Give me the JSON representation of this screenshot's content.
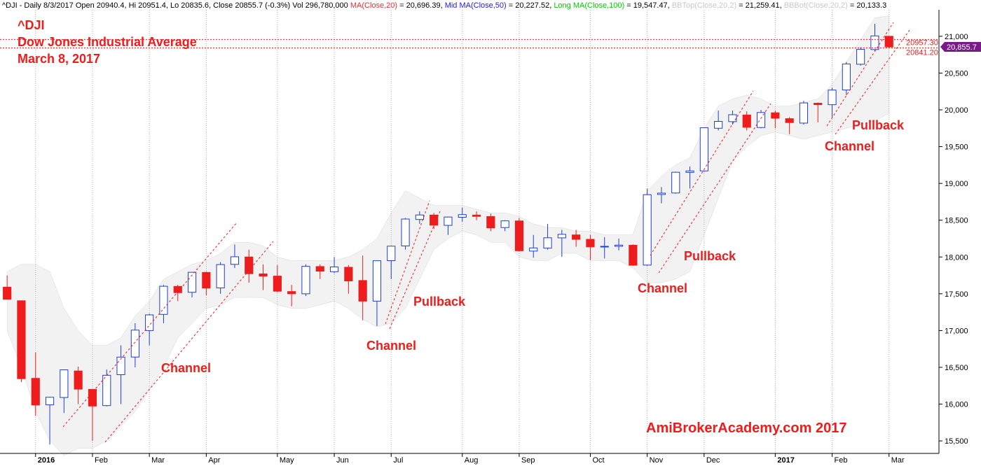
{
  "chart_data": {
    "type": "candlestick",
    "header": [
      {
        "text": "^DJI - Daily 8/3/2017 Open 20940.4, Hi 20951.4, Lo 20835.6, Close 20855.7 (-0.3%) Vol 296,780,000 ",
        "color": "#000000"
      },
      {
        "text": "MA(Close,20)",
        "color": "#e03030"
      },
      {
        "text": " = 20,696.39, ",
        "color": "#000000"
      },
      {
        "text": "Mid MA(Close,50)",
        "color": "#2020e0"
      },
      {
        "text": " = 20,227.52, ",
        "color": "#000000"
      },
      {
        "text": "Long MA(Close,100)",
        "color": "#00cc00"
      },
      {
        "text": " = 19,547.47, ",
        "color": "#000000"
      },
      {
        "text": "BBTop(Close,20,2)",
        "color": "#c8c8c8"
      },
      {
        "text": " = 21,259.41, ",
        "color": "#000000"
      },
      {
        "text": "BBBot(Close,20,2)",
        "color": "#c8c8c8"
      },
      {
        "text": " = 20,133.3",
        "color": "#000000"
      }
    ],
    "title_lines": [
      "^DJI",
      "Dow Jones Industrial Average",
      "March 8, 2017"
    ],
    "annotations": [
      "Channel",
      "Channel",
      "Pullback",
      "Channel",
      "Pullback",
      "Channel",
      "Pullback"
    ],
    "watermark": "AmiBrokerAcademy.com  2017",
    "categories": [
      null,
      null,
      "2016",
      null,
      null,
      null,
      "Feb",
      null,
      null,
      null,
      "Mar",
      null,
      null,
      null,
      "Apr",
      null,
      null,
      null,
      null,
      "May",
      null,
      null,
      null,
      "Jun",
      null,
      null,
      null,
      "Jul",
      null,
      null,
      null,
      null,
      "Aug",
      null,
      null,
      null,
      "Sep",
      null,
      null,
      null,
      null,
      "Oct",
      null,
      null,
      null,
      "Nov",
      null,
      null,
      null,
      "Dec",
      null,
      null,
      null,
      null,
      "2017",
      null,
      null,
      null,
      "Feb",
      null,
      null,
      null,
      "Mar"
    ],
    "open": [
      17590,
      17405,
      16350,
      15990,
      16090,
      16450,
      16200,
      15980,
      16400,
      16640,
      17000,
      17220,
      17600,
      17520,
      17790,
      17580,
      17900,
      18000,
      17770,
      17740,
      17530,
      17500,
      17870,
      17800,
      17860,
      17680,
      17400,
      17950,
      18150,
      18510,
      18570,
      18430,
      18540,
      18570,
      18550,
      18400,
      18490,
      18080,
      18120,
      18260,
      18300,
      18240,
      18140,
      18145,
      18160,
      17890,
      18850,
      18870,
      19150,
      19170,
      19750,
      19840,
      19930,
      19760,
      19960,
      19880,
      19820,
      20090,
      20070,
      20270,
      20620,
      20820,
      21000
    ],
    "high": [
      17750,
      17405,
      16700,
      16100,
      16470,
      16510,
      16200,
      16470,
      16800,
      17100,
      17230,
      17620,
      17620,
      17790,
      17800,
      17930,
      18170,
      18100,
      17900,
      17890,
      17620,
      17900,
      17900,
      18000,
      17890,
      18020,
      17950,
      18150,
      18530,
      18620,
      18600,
      18550,
      18670,
      18620,
      18590,
      18500,
      18530,
      18300,
      18450,
      18370,
      18370,
      18300,
      18270,
      18250,
      18170,
      18930,
      18950,
      19160,
      19230,
      19760,
      19990,
      19990,
      19980,
      19999,
      19990,
      19900,
      20125,
      20100,
      20300,
      20650,
      20850,
      21170,
      21000
    ],
    "low": [
      17420,
      16300,
      15840,
      15450,
      15880,
      16000,
      15500,
      15970,
      16000,
      16500,
      16800,
      17100,
      17400,
      17450,
      17480,
      17500,
      17850,
      17650,
      17550,
      17520,
      17330,
      17470,
      17700,
      17780,
      17500,
      17140,
      17060,
      17700,
      18100,
      18450,
      18380,
      18300,
      18480,
      18500,
      18350,
      18350,
      18080,
      17990,
      18100,
      18000,
      18140,
      17960,
      17980,
      18090,
      17880,
      17880,
      18730,
      18860,
      18930,
      19160,
      19720,
      19800,
      19720,
      19750,
      19750,
      19670,
      19800,
      19830,
      19900,
      20200,
      20600,
      20800,
      20835
    ],
    "close": [
      17425,
      16346,
      15988,
      16093,
      16466,
      16204,
      15974,
      16392,
      16639,
      17006,
      17213,
      17602,
      17515,
      17792,
      17577,
      17897,
      18003,
      17773,
      17740,
      17535,
      17500,
      17873,
      17807,
      17865,
      17675,
      17400,
      17949,
      18147,
      18516,
      18571,
      18432,
      18543,
      18576,
      18552,
      18395,
      18491,
      18085,
      18123,
      18261,
      18308,
      18240,
      18138,
      18145,
      18161,
      17888,
      18847,
      18868,
      19152,
      19170,
      19757,
      19843,
      19934,
      19763,
      19964,
      19886,
      19827,
      20094,
      20071,
      20269,
      20624,
      20822,
      21005,
      20855.7
    ],
    "bb_upper": [
      17800,
      17900,
      17900,
      17800,
      17300,
      17000,
      16800,
      16800,
      16900,
      17200,
      17400,
      17700,
      17800,
      17900,
      17950,
      18050,
      18200,
      18200,
      18150,
      18000,
      17950,
      17950,
      17950,
      17950,
      18000,
      18100,
      18250,
      18600,
      18900,
      18800,
      18700,
      18700,
      18700,
      18650,
      18600,
      18600,
      18550,
      18450,
      18400,
      18400,
      18350,
      18350,
      18300,
      18300,
      18300,
      18900,
      19100,
      19250,
      19350,
      19750,
      20050,
      20150,
      20200,
      20150,
      20050,
      20050,
      20100,
      20150,
      20350,
      20650,
      20950,
      21250,
      21280
    ],
    "bb_lower": [
      17000,
      16500,
      15900,
      15500,
      15300,
      15400,
      15400,
      15500,
      15700,
      15900,
      16200,
      16500,
      16900,
      17100,
      17300,
      17350,
      17450,
      17450,
      17450,
      17350,
      17300,
      17300,
      17350,
      17400,
      17300,
      17150,
      17050,
      17100,
      17300,
      17700,
      18100,
      18250,
      18350,
      18300,
      18200,
      18200,
      18000,
      17950,
      17950,
      18050,
      18050,
      17950,
      17950,
      17950,
      17850,
      17650,
      17650,
      17700,
      17800,
      18300,
      18800,
      19300,
      19500,
      19650,
      19700,
      19650,
      19600,
      19650,
      19700,
      19750,
      19800,
      19850,
      19950
    ],
    "up_color": "#1f3fd0",
    "down_color": "#ee1c1c",
    "band_color": "#f2f2f2",
    "close_label": "20,855.7",
    "close_tag_color": "#7a1a8a",
    "levels": [
      {
        "value": 20957.3,
        "label": "20957.30"
      },
      {
        "value": 20841.2,
        "label": "20841.20"
      }
    ],
    "level_color": "#ee1c1c",
    "ylim": [
      15330,
      21360
    ],
    "yticks": [
      {
        "value": 15500,
        "label": "15,500"
      },
      {
        "value": 16000,
        "label": "16,000"
      },
      {
        "value": 16500,
        "label": "16,500"
      },
      {
        "value": 17000,
        "label": "17,000"
      },
      {
        "value": 17500,
        "label": "17,500"
      },
      {
        "value": 18000,
        "label": "18,000"
      },
      {
        "value": 18500,
        "label": "18,500"
      },
      {
        "value": 19000,
        "label": "19,000"
      },
      {
        "value": 19500,
        "label": "19,500"
      },
      {
        "value": 20000,
        "label": "20,000"
      },
      {
        "value": 20500,
        "label": "20,500"
      },
      {
        "value": 21000,
        "label": "21,000"
      }
    ],
    "xgrid": true
  }
}
